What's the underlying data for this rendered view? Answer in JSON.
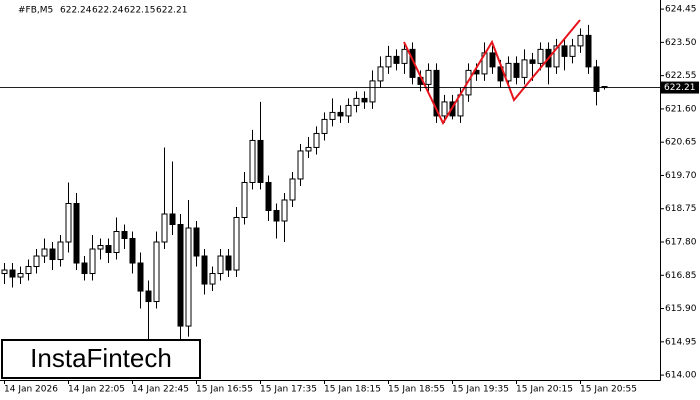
{
  "chart_data": {
    "type": "candlestick",
    "symbol": "#FB,M5",
    "watermark": "InstaFintech",
    "categories": [
      "14 Jan 2026",
      null,
      null,
      null,
      null,
      null,
      null,
      null,
      "14 Jan 22:05",
      null,
      null,
      null,
      null,
      null,
      null,
      null,
      "14 Jan 22:45",
      null,
      null,
      null,
      null,
      null,
      null,
      null,
      "15 Jan 16:55",
      null,
      null,
      null,
      null,
      null,
      null,
      null,
      "15 Jan 17:35",
      null,
      null,
      null,
      null,
      null,
      null,
      null,
      "15 Jan 18:15",
      null,
      null,
      null,
      null,
      null,
      null,
      null,
      "15 Jan 18:55",
      null,
      null,
      null,
      null,
      null,
      null,
      null,
      "15 Jan 19:35",
      null,
      null,
      null,
      null,
      null,
      null,
      null,
      "15 Jan 20:15",
      null,
      null,
      null,
      null,
      null,
      null,
      null,
      "15 Jan 20:55",
      null,
      null,
      null
    ],
    "open": [
      616.9,
      617.0,
      616.8,
      616.9,
      617.1,
      617.4,
      617.6,
      617.3,
      617.8,
      618.9,
      617.2,
      616.9,
      617.6,
      617.7,
      617.5,
      618.1,
      617.9,
      617.2,
      616.4,
      616.1,
      617.8,
      618.6,
      618.3,
      615.4,
      618.2,
      617.4,
      616.6,
      616.9,
      617.4,
      617.0,
      618.5,
      619.5,
      620.7,
      619.5,
      618.7,
      618.4,
      619.0,
      619.6,
      620.4,
      620.5,
      620.9,
      621.3,
      621.5,
      621.4,
      621.7,
      621.9,
      621.8,
      622.4,
      622.8,
      623.1,
      622.9,
      623.3,
      622.5,
      622.3,
      622.7,
      621.4,
      621.8,
      621.4,
      622.0,
      622.7,
      622.6,
      623.2,
      622.8,
      622.4,
      622.9,
      622.5,
      623.0,
      622.9,
      623.3,
      622.8,
      623.4,
      623.1,
      623.4,
      623.7,
      622.8,
      622.24
    ],
    "high": [
      617.2,
      617.2,
      617.1,
      617.3,
      617.6,
      617.9,
      617.8,
      618.0,
      619.5,
      619.2,
      617.4,
      618.0,
      617.9,
      617.9,
      618.5,
      618.3,
      618.1,
      617.5,
      616.7,
      618.1,
      620.5,
      620.1,
      618.6,
      619.0,
      618.4,
      617.6,
      617.1,
      617.6,
      617.6,
      618.8,
      619.8,
      621.0,
      621.8,
      619.7,
      618.9,
      619.2,
      619.8,
      620.6,
      620.8,
      621.1,
      621.5,
      621.9,
      621.7,
      621.9,
      622.1,
      622.1,
      622.7,
      623.1,
      623.4,
      623.3,
      623.5,
      623.5,
      622.7,
      622.9,
      622.9,
      622.0,
      622.0,
      622.2,
      622.9,
      622.9,
      623.5,
      623.4,
      623.0,
      623.1,
      623.1,
      623.3,
      623.2,
      623.5,
      623.5,
      623.6,
      623.6,
      623.6,
      623.9,
      624.0,
      623.0,
      622.24
    ],
    "low": [
      616.6,
      616.5,
      616.6,
      616.7,
      616.9,
      617.2,
      617.0,
      617.1,
      617.5,
      617.0,
      616.7,
      616.7,
      617.3,
      617.2,
      617.3,
      617.6,
      616.9,
      615.9,
      615.0,
      615.9,
      617.6,
      618.0,
      614.7,
      615.1,
      617.1,
      616.3,
      616.4,
      616.7,
      616.8,
      616.8,
      618.3,
      619.3,
      619.3,
      618.4,
      617.9,
      617.8,
      618.8,
      619.4,
      620.2,
      620.3,
      620.7,
      621.1,
      621.2,
      621.2,
      621.5,
      621.6,
      621.6,
      622.2,
      622.6,
      622.7,
      622.6,
      622.3,
      622.1,
      622.1,
      621.2,
      621.2,
      621.3,
      621.2,
      621.8,
      622.4,
      622.4,
      622.6,
      622.2,
      622.2,
      622.3,
      622.3,
      622.4,
      622.7,
      622.3,
      622.6,
      622.7,
      622.9,
      623.2,
      622.6,
      621.7,
      622.15
    ],
    "close": [
      617.0,
      616.8,
      616.9,
      617.1,
      617.4,
      617.6,
      617.3,
      617.8,
      618.9,
      617.2,
      616.9,
      617.6,
      617.7,
      617.5,
      618.1,
      617.9,
      617.2,
      616.4,
      616.1,
      617.8,
      618.6,
      618.3,
      615.4,
      618.2,
      617.4,
      616.6,
      616.9,
      617.4,
      617.0,
      618.5,
      619.5,
      620.7,
      619.5,
      618.7,
      618.4,
      619.0,
      619.6,
      620.4,
      620.5,
      620.9,
      621.3,
      621.5,
      621.4,
      621.7,
      621.9,
      621.8,
      622.4,
      622.8,
      623.1,
      622.9,
      623.3,
      622.5,
      622.3,
      622.7,
      621.4,
      621.8,
      621.4,
      622.0,
      622.7,
      622.6,
      623.2,
      622.8,
      622.4,
      622.9,
      622.5,
      623.0,
      622.9,
      623.3,
      622.8,
      623.4,
      623.1,
      623.4,
      623.7,
      622.8,
      622.1,
      622.21
    ],
    "last_price": 622.21,
    "ylim": [
      613.86,
      624.71
    ],
    "yticks": [
      624.45,
      {
        "value": 623.5,
        "label": "623.50"
      },
      622.55,
      {
        "value": 621.6,
        "label": "621.60"
      },
      620.65,
      {
        "value": 619.7,
        "label": "619.70"
      },
      618.75,
      {
        "value": 617.8,
        "label": "617.80"
      },
      616.85,
      {
        "value": 615.9,
        "label": "615.90"
      },
      614.95,
      {
        "value": 614.0,
        "label": "614.00"
      }
    ],
    "grid": false,
    "up_color": "#ffffff",
    "down_color": "#000000"
  }
}
